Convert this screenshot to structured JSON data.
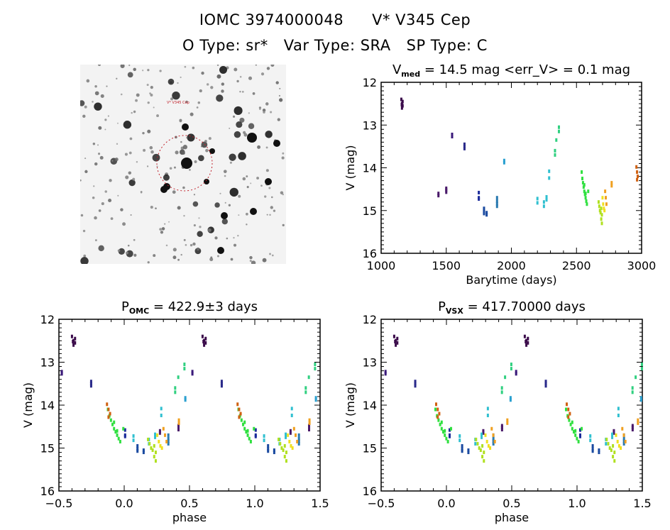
{
  "header": {
    "line1_id": "IOMC 3974000048",
    "line1_name": "V* V345 Cep",
    "line2_otype": "O Type: sr*",
    "line2_vartype": "Var Type: SRA",
    "line2_sptype": "SP Type: C"
  },
  "image": {
    "target_label": "V* V345 Cep",
    "marker_color": "#c0202a"
  },
  "chart_data": [
    {
      "id": "lightcurve",
      "type": "scatter",
      "title_main": "V",
      "title_sub": "med",
      "title_rest": " = 14.5 mag <err_V> = 0.1 mag",
      "xlabel": "Barytime (days)",
      "ylabel": "V (mag)",
      "xlim": [
        1000,
        3000
      ],
      "ylim": [
        16,
        12
      ],
      "xticks": [
        "1000",
        "1500",
        "2000",
        "2500",
        "3000"
      ],
      "yticks": [
        "12",
        "13",
        "14",
        "15",
        "16"
      ],
      "groups": [
        {
          "color": "#3a0a4a",
          "x": [
            1155,
            1160,
            1165,
            1160,
            1165,
            1158
          ],
          "y": [
            12.4,
            12.5,
            12.55,
            12.6,
            12.45,
            12.52
          ]
        },
        {
          "color": "#4a1a6a",
          "x": [
            1440,
            1440,
            1500,
            1500,
            1500
          ],
          "y": [
            14.6,
            14.65,
            14.48,
            14.52,
            14.57
          ]
        },
        {
          "color": "#3a1a7a",
          "x": [
            1545,
            1545
          ],
          "y": [
            13.22,
            13.27
          ]
        },
        {
          "color": "#2a2a8a",
          "x": [
            1640,
            1640,
            1640
          ],
          "y": [
            13.45,
            13.5,
            13.55
          ]
        },
        {
          "color": "#1a2a9a",
          "x": [
            1750,
            1750,
            1750
          ],
          "y": [
            14.58,
            14.7,
            14.73
          ]
        },
        {
          "color": "#1a4aa0",
          "x": [
            1790,
            1790,
            1790,
            1810,
            1810
          ],
          "y": [
            14.95,
            15.02,
            15.07,
            15.05,
            15.1
          ]
        },
        {
          "color": "#2a7ab0",
          "x": [
            1890,
            1890,
            1890,
            1890
          ],
          "y": [
            14.7,
            14.78,
            14.84,
            14.9
          ]
        },
        {
          "color": "#2aa0d0",
          "x": [
            1945,
            1945
          ],
          "y": [
            13.83,
            13.88
          ]
        },
        {
          "color": "#30c0d0",
          "x": [
            2200,
            2200,
            2250,
            2250,
            2270,
            2270,
            2290,
            2290
          ],
          "y": [
            14.72,
            14.82,
            14.8,
            14.9,
            14.68,
            14.75,
            14.08,
            14.24
          ]
        },
        {
          "color": "#30d080",
          "x": [
            2335,
            2335,
            2345,
            2365,
            2365
          ],
          "y": [
            13.6,
            13.7,
            13.35,
            13.05,
            13.15
          ]
        },
        {
          "color": "#30e040",
          "x": [
            2540,
            2545,
            2550,
            2555,
            2560,
            2565,
            2570,
            2575,
            2580,
            2560,
            2570,
            2590
          ],
          "y": [
            14.1,
            14.25,
            14.35,
            14.45,
            14.55,
            14.62,
            14.7,
            14.78,
            14.85,
            14.4,
            14.6,
            14.55
          ]
        },
        {
          "color": "#b0e020",
          "x": [
            2670,
            2675,
            2680,
            2685,
            2690,
            2695,
            2690,
            2695
          ],
          "y": [
            14.8,
            14.9,
            15.0,
            15.05,
            14.95,
            15.1,
            15.2,
            15.3
          ]
        },
        {
          "color": "#f0e020",
          "x": [
            2700,
            2705,
            2710,
            2715
          ],
          "y": [
            14.7,
            14.85,
            14.95,
            15.0
          ]
        },
        {
          "color": "#f0a020",
          "x": [
            2720,
            2725,
            2730,
            2770,
            2770
          ],
          "y": [
            14.55,
            14.7,
            14.85,
            14.35,
            14.42
          ]
        },
        {
          "color": "#d06010",
          "x": [
            2960,
            2965,
            2970,
            2965
          ],
          "y": [
            13.98,
            14.1,
            14.2,
            14.28
          ]
        }
      ]
    },
    {
      "id": "phase_omc",
      "type": "scatter",
      "title_main": "P",
      "title_sub": "OMC",
      "title_rest": " = 422.9±3 days",
      "xlabel": "phase",
      "ylabel": "V (mag)",
      "xlim": [
        -0.5,
        1.5
      ],
      "ylim": [
        16,
        12
      ],
      "xticks": [
        "-0.5",
        "0.0",
        "0.5",
        "1.0",
        "1.5"
      ],
      "yticks": [
        "12",
        "13",
        "14",
        "15",
        "16"
      ],
      "period_days": 422.9,
      "period_err_days": 3
    },
    {
      "id": "phase_vsx",
      "type": "scatter",
      "title_main": "P",
      "title_sub": "VSX",
      "title_rest": " = 417.70000 days",
      "xlabel": "phase",
      "ylabel": "V (mag)",
      "xlim": [
        -0.5,
        1.5
      ],
      "ylim": [
        16,
        12
      ],
      "xticks": [
        "-0.5",
        "0.0",
        "0.5",
        "1.0",
        "1.5"
      ],
      "yticks": [
        "12",
        "13",
        "14",
        "15",
        "16"
      ],
      "period_days": 417.7
    }
  ]
}
